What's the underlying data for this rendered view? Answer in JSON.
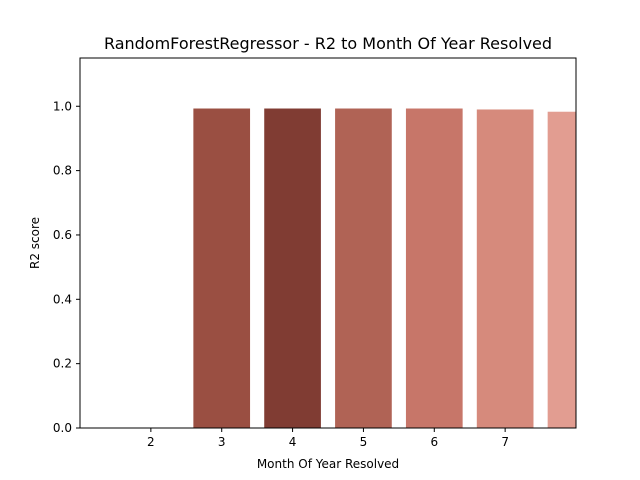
{
  "chart_data": {
    "type": "bar",
    "title": "RandomForestRegressor - R2 to Month Of Year Resolved",
    "xlabel": "Month Of Year Resolved",
    "ylabel": "R2 score",
    "x_ticks": [
      "2",
      "3",
      "4",
      "5",
      "6",
      "7"
    ],
    "y_ticks": [
      "0.0",
      "0.2",
      "0.4",
      "0.6",
      "0.8",
      "1.0"
    ],
    "xlim": [
      1,
      8
    ],
    "ylim": [
      0,
      1.15
    ],
    "grid": false,
    "legend": "none",
    "bars": [
      {
        "x": 3,
        "value": 0.993,
        "color": "#9a4f42"
      },
      {
        "x": 4,
        "value": 0.993,
        "color": "#803c33"
      },
      {
        "x": 5,
        "value": 0.993,
        "color": "#b06355"
      },
      {
        "x": 6,
        "value": 0.993,
        "color": "#c77669"
      },
      {
        "x": 7,
        "value": 0.99,
        "color": "#d68a7c"
      },
      {
        "x": 8,
        "value": 0.983,
        "color": "#e29d91"
      }
    ]
  }
}
